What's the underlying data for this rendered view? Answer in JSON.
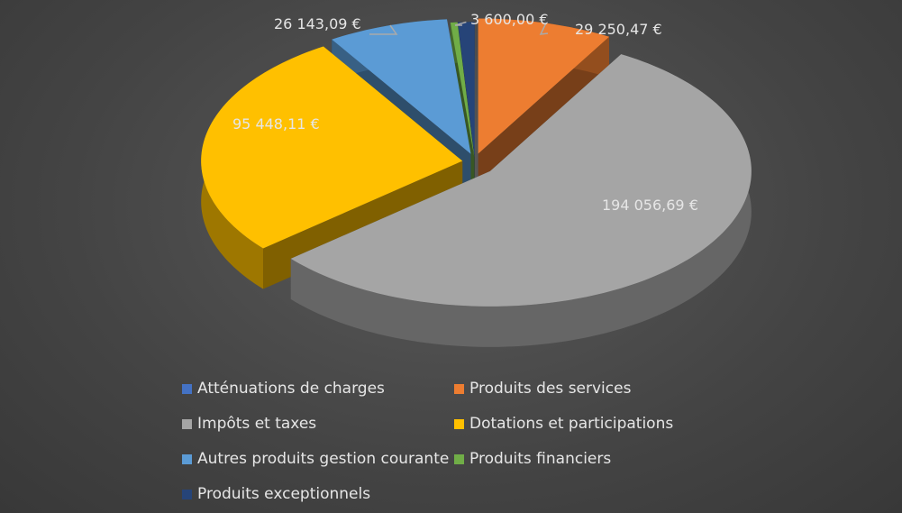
{
  "chart_data": {
    "type": "pie",
    "style": "3d-exploded",
    "title": "",
    "legend_position": "bottom",
    "categories": [
      "Atténuations de charges",
      "Produits des services",
      "Impôts et taxes",
      "Dotations et participations",
      "Autres produits gestion courante",
      "Produits financiers",
      "Produits exceptionnels"
    ],
    "values": [
      null,
      29250.47,
      194056.69,
      95448.11,
      26143.09,
      null,
      3600.0
    ],
    "data_labels": [
      "",
      "29 250,47 €",
      "194 056,69 €",
      "95 448,11 €",
      "26 143,09 €",
      "",
      "3 600,00 €"
    ],
    "colors": [
      "#4472c4",
      "#ed7d31",
      "#a5a5a5",
      "#ffc000",
      "#5b9bd5",
      "#70ad47",
      "#264478"
    ]
  }
}
